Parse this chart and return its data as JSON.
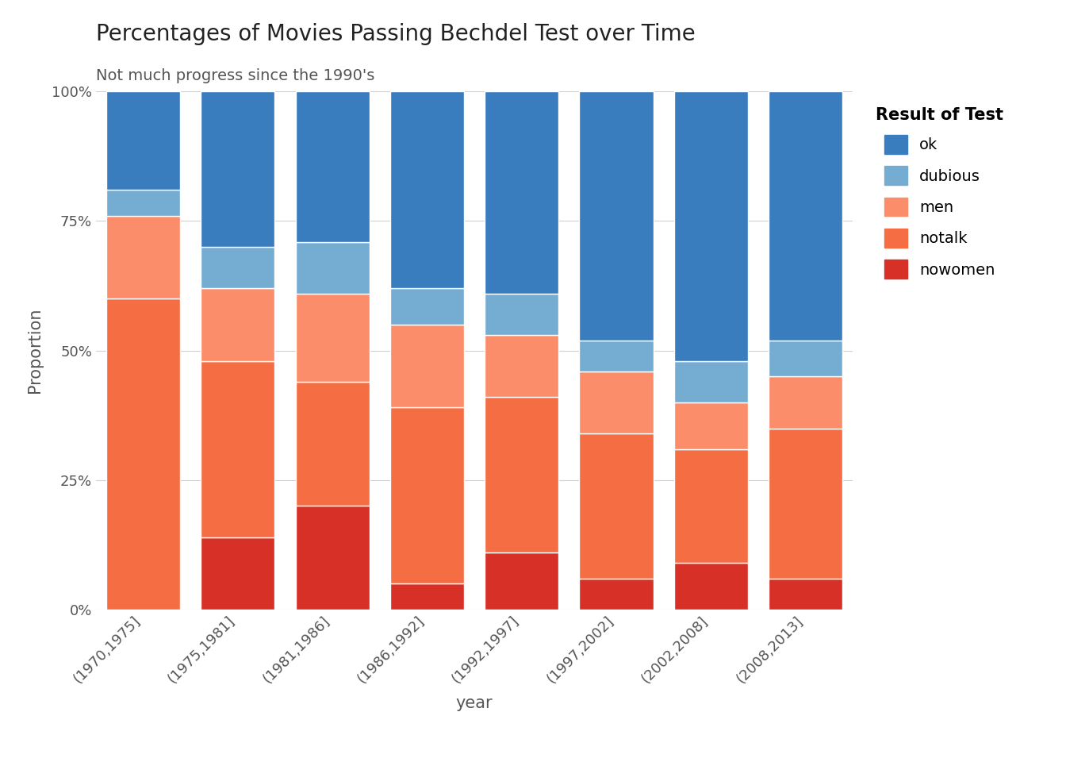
{
  "title": "Percentages of Movies Passing Bechdel Test over Time",
  "subtitle": "Not much progress since the 1990's",
  "xlabel": "year",
  "ylabel": "Proportion",
  "categories": [
    "(1970,1975]",
    "(1975,1981]",
    "(1981,1986]",
    "(1986,1992]",
    "(1992,1997]",
    "(1997,2002]",
    "(2002,2008]",
    "(2008,2013]"
  ],
  "series": {
    "nowomen": [
      0.0,
      0.14,
      0.2,
      0.05,
      0.11,
      0.06,
      0.09,
      0.06
    ],
    "notalk": [
      0.6,
      0.34,
      0.24,
      0.34,
      0.3,
      0.28,
      0.22,
      0.29
    ],
    "men": [
      0.16,
      0.14,
      0.17,
      0.16,
      0.12,
      0.12,
      0.09,
      0.1
    ],
    "dubious": [
      0.05,
      0.08,
      0.1,
      0.07,
      0.08,
      0.06,
      0.08,
      0.07
    ],
    "ok": [
      0.19,
      0.3,
      0.29,
      0.38,
      0.39,
      0.48,
      0.52,
      0.48
    ]
  },
  "colors": {
    "nowomen": "#d73027",
    "notalk": "#f46d43",
    "men": "#fc8d6b",
    "dubious": "#74add1",
    "ok": "#3a7dbf"
  },
  "legend_title": "Result of Test",
  "legend_order": [
    "ok",
    "dubious",
    "men",
    "notalk",
    "nowomen"
  ],
  "yticks": [
    0.0,
    0.25,
    0.5,
    0.75,
    1.0
  ],
  "ytick_labels": [
    "0%",
    "25%",
    "50%",
    "75%",
    "100%"
  ],
  "title_fontsize": 20,
  "subtitle_fontsize": 14,
  "axis_label_fontsize": 15,
  "tick_fontsize": 13,
  "legend_fontsize": 14,
  "background_color": "#ffffff"
}
